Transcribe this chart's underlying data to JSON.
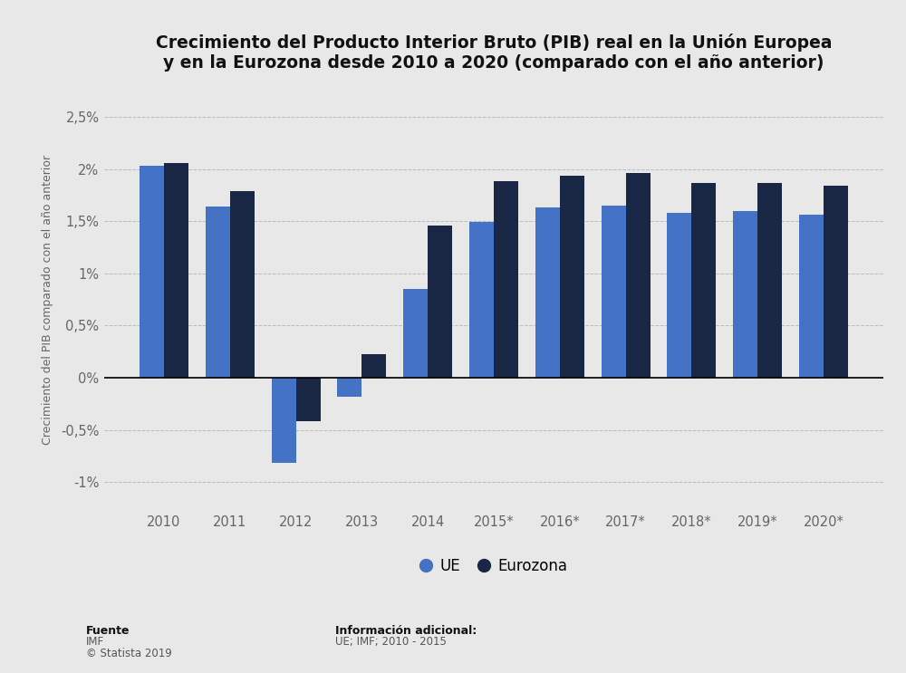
{
  "title_line1": "Crecimiento del Producto Interior Bruto (PIB) real en la Unión Europea",
  "title_line2": "y en la Eurozona desde 2010 a 2020 (comparado con el año anterior)",
  "ylabel": "Crecimiento del PIB comparado con el año anterior",
  "categories": [
    "2010",
    "2011",
    "2012",
    "2013",
    "2014",
    "2015*",
    "2016*",
    "2017*",
    "2018*",
    "2019*",
    "2020*"
  ],
  "ue_values": [
    2.03,
    1.64,
    -0.82,
    -0.18,
    0.85,
    1.49,
    1.63,
    1.65,
    1.58,
    1.6,
    1.56
  ],
  "eurozona_values": [
    2.06,
    1.79,
    -0.42,
    0.23,
    1.46,
    1.88,
    1.94,
    1.96,
    1.87,
    1.87,
    1.84
  ],
  "ue_color": "#4472c4",
  "eurozona_color": "#1a2744",
  "background_color": "#e8e8e8",
  "plot_background": "#e8e8e8",
  "ylim_min": -1.25,
  "ylim_max": 2.75,
  "yticks": [
    -1.0,
    -0.5,
    0.0,
    0.5,
    1.0,
    1.5,
    2.0,
    2.5
  ],
  "ytick_labels": [
    "-1%",
    "-0,5%",
    "0%",
    "0,5%",
    "1%",
    "1,5%",
    "2%",
    "2,5%"
  ],
  "legend_ue": "UE",
  "legend_eurozona": "Eurozona",
  "source_label": "Fuente",
  "source_value": "IMF",
  "source_copy": "© Statista 2019",
  "info_label": "Información adicional:",
  "info_value": "UE; IMF; 2010 - 2015",
  "title_fontsize": 13.5,
  "tick_fontsize": 10.5,
  "bar_width": 0.37
}
